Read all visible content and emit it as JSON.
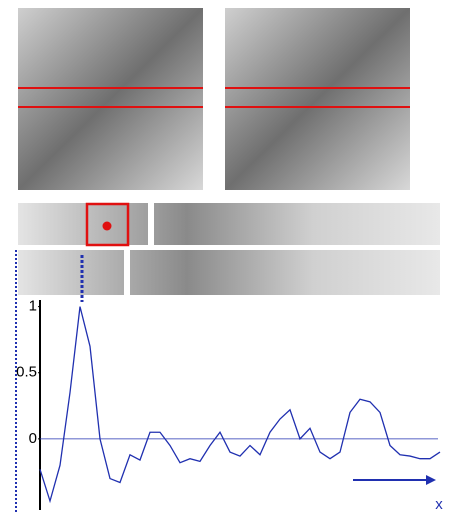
{
  "chart_data": {
    "type": "line",
    "x_label": "x",
    "values": [
      -0.23,
      -0.47,
      -0.2,
      0.35,
      1.0,
      0.7,
      0.0,
      -0.3,
      -0.33,
      -0.12,
      -0.16,
      0.05,
      0.05,
      -0.05,
      -0.18,
      -0.15,
      -0.17,
      -0.05,
      0.05,
      -0.1,
      -0.13,
      -0.05,
      -0.12,
      0.05,
      0.15,
      0.22,
      0.0,
      0.08,
      -0.1,
      -0.15,
      -0.1,
      0.2,
      0.3,
      0.28,
      0.2,
      -0.05,
      -0.12,
      -0.13,
      -0.15,
      -0.15,
      -0.1
    ],
    "color": "#2030b0",
    "ylim": [
      -0.5,
      1.05
    ],
    "yticks": [
      0,
      0.5,
      1
    ],
    "grid": false
  }
}
